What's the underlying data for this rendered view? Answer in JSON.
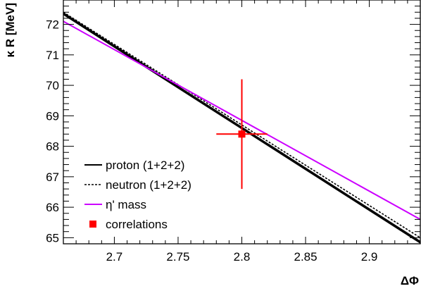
{
  "chart_data": {
    "type": "line",
    "xlabel": "ΔΦ",
    "ylabel": "κ R [MeV]",
    "xlim": [
      2.66,
      2.94
    ],
    "ylim": [
      64.8,
      72.8
    ],
    "x_ticks": [
      "2.7",
      "2.75",
      "2.8",
      "2.85",
      "2.9"
    ],
    "x_tick_values": [
      2.7,
      2.75,
      2.8,
      2.85,
      2.9
    ],
    "y_ticks": [
      "65",
      "66",
      "67",
      "68",
      "69",
      "70",
      "71",
      "72"
    ],
    "y_tick_values": [
      65,
      66,
      67,
      68,
      69,
      70,
      71,
      72
    ],
    "grid": false,
    "legend_position": "bottom-left",
    "colors": {
      "proton": "#000000",
      "neutron": "#000000",
      "eta_prime": "#cc00ff",
      "correlations": "#ff0000"
    },
    "series": [
      {
        "key": "proton",
        "name": "proton (1+2+2)",
        "style": "solid",
        "band": true,
        "x": [
          2.66,
          2.94
        ],
        "y": [
          72.35,
          64.85
        ]
      },
      {
        "key": "neutron",
        "name": "neutron (1+2+2)",
        "style": "dashed",
        "x": [
          2.66,
          2.94
        ],
        "y": [
          72.4,
          65.0
        ]
      },
      {
        "key": "eta_prime",
        "name": "η' mass",
        "style": "solid",
        "x": [
          2.66,
          2.94
        ],
        "y": [
          72.1,
          65.6
        ]
      }
    ],
    "points": [
      {
        "key": "correlations",
        "name": "correlations",
        "x": 2.8,
        "y": 68.4,
        "xerr": 0.02,
        "yerr": 1.8
      }
    ]
  }
}
